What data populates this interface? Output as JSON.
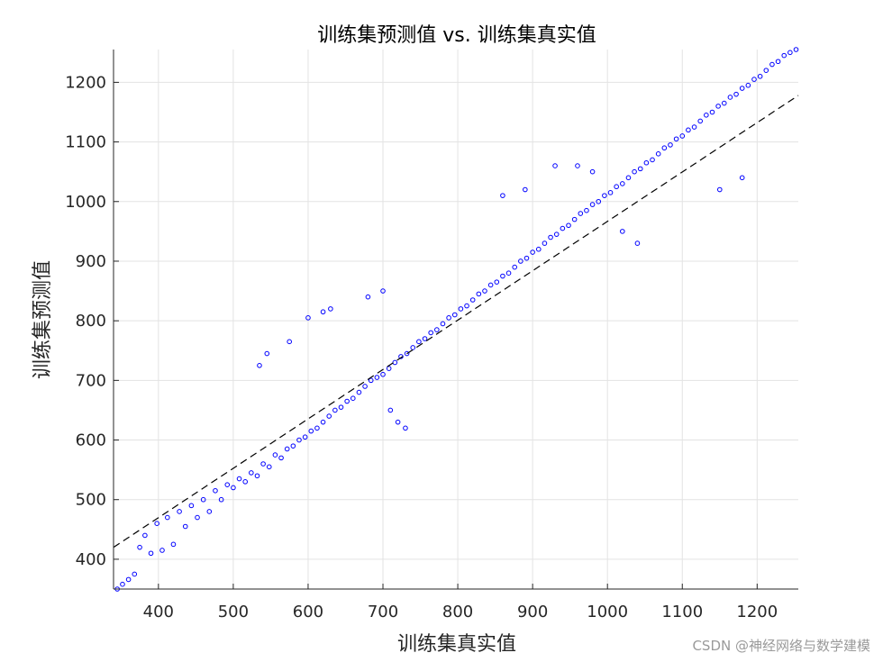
{
  "watermark": "CSDN @神经网络与数学建模",
  "chart_data": {
    "type": "scatter",
    "title": "训练集预测值 vs. 训练集真实值",
    "xlabel": "训练集真实值",
    "ylabel": "训练集预测值",
    "xlim": [
      340,
      1255
    ],
    "ylim": [
      350,
      1255
    ],
    "xticks": [
      400,
      500,
      600,
      700,
      800,
      900,
      1000,
      1100,
      1200
    ],
    "yticks": [
      400,
      500,
      600,
      700,
      800,
      900,
      1000,
      1100,
      1200
    ],
    "grid": true,
    "marker": "open-circle",
    "marker_color": "#0000ff",
    "reference_line": {
      "style": "dashed",
      "color": "#000000",
      "x": [
        340,
        1255
      ],
      "y": [
        420,
        1178
      ]
    },
    "series": [
      {
        "values_note_excluded": false,
        "x": [
          345,
          352,
          360,
          368,
          375,
          382,
          390,
          398,
          405,
          412,
          420,
          428,
          436,
          444,
          452,
          460,
          468,
          476,
          484,
          492,
          500,
          508,
          516,
          524,
          532,
          540,
          548,
          556,
          564,
          572,
          580,
          588,
          596,
          604,
          612,
          620,
          628,
          636,
          644,
          652,
          660,
          668,
          676,
          684,
          692,
          700,
          708,
          716,
          724,
          732,
          740,
          748,
          756,
          764,
          772,
          780,
          788,
          796,
          804,
          812,
          820,
          828,
          836,
          844,
          852,
          860,
          868,
          876,
          884,
          892,
          900,
          908,
          916,
          924,
          932,
          940,
          948,
          956,
          964,
          972,
          980,
          988,
          996,
          1004,
          1012,
          1020,
          1028,
          1036,
          1044,
          1052,
          1060,
          1068,
          1076,
          1084,
          1092,
          1100,
          1108,
          1116,
          1124,
          1132,
          1140,
          1148,
          1156,
          1164,
          1172,
          1180,
          1188,
          1196,
          1204,
          1212,
          1220,
          1228,
          1236,
          1244,
          1252,
          535,
          545,
          575,
          600,
          620,
          630,
          680,
          700,
          710,
          720,
          730,
          860,
          890,
          930,
          960,
          980,
          1020,
          1040,
          1150,
          1180
        ],
        "y": [
          350,
          358,
          366,
          375,
          420,
          440,
          410,
          460,
          415,
          470,
          425,
          480,
          455,
          490,
          470,
          500,
          480,
          515,
          500,
          525,
          520,
          535,
          530,
          545,
          540,
          560,
          555,
          575,
          570,
          585,
          590,
          600,
          605,
          615,
          620,
          630,
          640,
          650,
          655,
          665,
          670,
          680,
          690,
          700,
          705,
          710,
          720,
          730,
          740,
          745,
          755,
          765,
          770,
          780,
          785,
          795,
          805,
          810,
          820,
          825,
          835,
          845,
          850,
          860,
          865,
          875,
          880,
          890,
          900,
          905,
          915,
          920,
          930,
          940,
          945,
          955,
          960,
          970,
          980,
          985,
          995,
          1000,
          1010,
          1015,
          1025,
          1030,
          1040,
          1050,
          1055,
          1065,
          1070,
          1080,
          1090,
          1095,
          1105,
          1110,
          1120,
          1125,
          1135,
          1145,
          1150,
          1160,
          1165,
          1175,
          1180,
          1190,
          1195,
          1205,
          1210,
          1220,
          1230,
          1235,
          1245,
          1250,
          1255,
          725,
          745,
          765,
          805,
          815,
          820,
          840,
          850,
          650,
          630,
          620,
          1010,
          1020,
          1060,
          1060,
          1050,
          950,
          930,
          1020,
          1040
        ]
      }
    ]
  }
}
